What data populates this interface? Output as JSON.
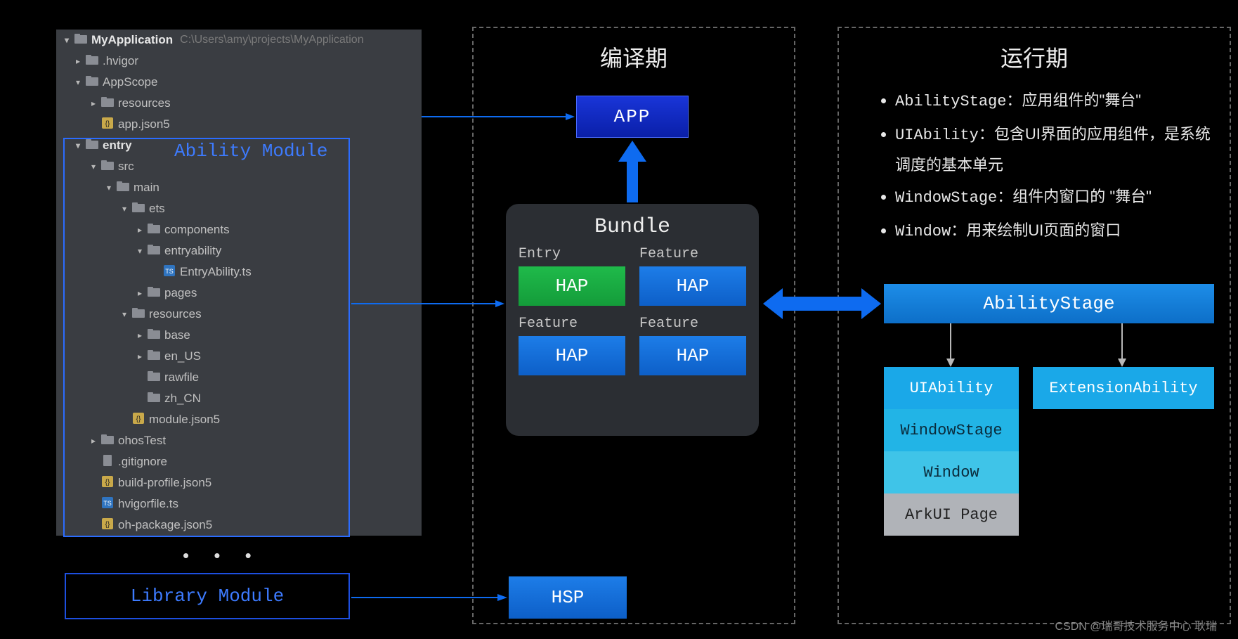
{
  "tree": {
    "root_name": "MyApplication",
    "root_path": "C:\\Users\\amy\\projects\\MyApplication",
    "items": [
      {
        "indent": 1,
        "chev": ">",
        "kind": "folder",
        "label": ".hvigor"
      },
      {
        "indent": 1,
        "chev": "v",
        "kind": "folder",
        "label": "AppScope"
      },
      {
        "indent": 2,
        "chev": ">",
        "kind": "folder",
        "label": "resources"
      },
      {
        "indent": 2,
        "chev": "",
        "kind": "json",
        "label": "app.json5"
      },
      {
        "indent": 1,
        "chev": "v",
        "kind": "folder",
        "label": "entry",
        "bold": true
      },
      {
        "indent": 2,
        "chev": "v",
        "kind": "folder",
        "label": "src"
      },
      {
        "indent": 3,
        "chev": "v",
        "kind": "folder",
        "label": "main"
      },
      {
        "indent": 4,
        "chev": "v",
        "kind": "folder",
        "label": "ets"
      },
      {
        "indent": 5,
        "chev": ">",
        "kind": "folder",
        "label": "components"
      },
      {
        "indent": 5,
        "chev": "v",
        "kind": "folder",
        "label": "entryability"
      },
      {
        "indent": 6,
        "chev": "",
        "kind": "ts",
        "label": "EntryAbility.ts"
      },
      {
        "indent": 5,
        "chev": ">",
        "kind": "folder",
        "label": "pages"
      },
      {
        "indent": 4,
        "chev": "v",
        "kind": "folder",
        "label": "resources"
      },
      {
        "indent": 5,
        "chev": ">",
        "kind": "folder",
        "label": "base"
      },
      {
        "indent": 5,
        "chev": ">",
        "kind": "folder",
        "label": "en_US"
      },
      {
        "indent": 5,
        "chev": "",
        "kind": "folder",
        "label": "rawfile"
      },
      {
        "indent": 5,
        "chev": "",
        "kind": "folder",
        "label": "zh_CN"
      },
      {
        "indent": 4,
        "chev": "",
        "kind": "json",
        "label": "module.json5"
      },
      {
        "indent": 2,
        "chev": ">",
        "kind": "folder",
        "label": "ohosTest"
      },
      {
        "indent": 2,
        "chev": "",
        "kind": "file",
        "label": ".gitignore"
      },
      {
        "indent": 2,
        "chev": "",
        "kind": "json",
        "label": "build-profile.json5"
      },
      {
        "indent": 2,
        "chev": "",
        "kind": "ts",
        "label": "hvigorfile.ts"
      },
      {
        "indent": 2,
        "chev": "",
        "kind": "json",
        "label": "oh-package.json5"
      }
    ]
  },
  "ability_module_label": "Ability Module",
  "library_module_label": "Library Module",
  "compile_title": "编译期",
  "runtime_title": "运行期",
  "app_label": "APP",
  "bundle": {
    "title": "Bundle",
    "cells": [
      {
        "label": "Entry",
        "text": "HAP",
        "color": "green"
      },
      {
        "label": "Feature",
        "text": "HAP",
        "color": "blue"
      },
      {
        "label": "Feature",
        "text": "HAP",
        "color": "blue"
      },
      {
        "label": "Feature",
        "text": "HAP",
        "color": "blue"
      }
    ]
  },
  "hsp_label": "HSP",
  "ability_stage_label": "AbilityStage",
  "stack": {
    "uiability": "UIAbility",
    "windowstage": "WindowStage",
    "window": "Window",
    "arkui": "ArkUI Page"
  },
  "extension_label": "ExtensionAbility",
  "bullets": {
    "b1_code": "AbilityStage：",
    "b1_text": "应用组件的\"舞台\"",
    "b2_code": "UIAbility：",
    "b2_text": "包含UI界面的应用组件，是系统调度的基本单元",
    "b3_code": "WindowStage：",
    "b3_text": "组件内窗口的 \"舞台\"",
    "b4_code": "Window：",
    "b4_text": "用来绘制UI页面的窗口"
  },
  "watermark": "CSDN @瑞哥技术服务中心 耿瑞",
  "colors": {
    "bg": "#000000",
    "panel": "#3a3d42",
    "highlight_border": "#2b6cff",
    "label_blue": "#3d7bff",
    "dashed_border": "#666666",
    "app_grad_top": "#1935d8",
    "app_grad_bot": "#0a1fa8",
    "bundle_bg": "#2b2e33",
    "hap_green_top": "#1fba4a",
    "hap_green_bot": "#149c3a",
    "hap_blue_top": "#1d7de8",
    "hap_blue_bot": "#0d5fc8",
    "stage_cyan": "#1aa8e8",
    "stack_c2": "#22b4e6",
    "stack_c3": "#3fc4e8",
    "stack_c4": "#b0b3b8",
    "arrow_blue": "#0e6bf0",
    "arrow_gray": "#b8b8b8",
    "text_light": "#e8e8e8"
  }
}
